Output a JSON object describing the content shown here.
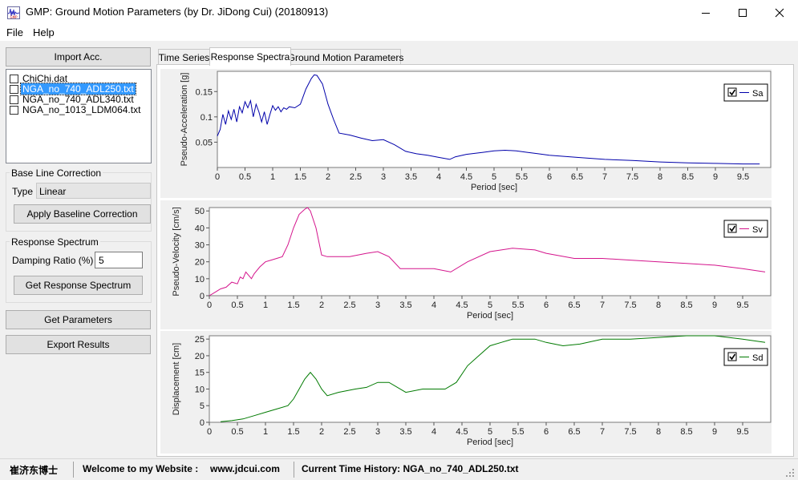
{
  "window": {
    "title": "GMP: Ground Motion Parameters (by Dr. JiDong Cui) (20180913)"
  },
  "menu": [
    "File",
    "Help"
  ],
  "left_panel": {
    "import_button": "Import Acc.",
    "files": [
      {
        "name": "ChiChi.dat",
        "checked": false,
        "selected": false
      },
      {
        "name": "NGA_no_740_ADL250.txt",
        "checked": false,
        "selected": true
      },
      {
        "name": "NGA_no_740_ADL340.txt",
        "checked": false,
        "selected": false
      },
      {
        "name": "NGA_no_1013_LDM064.txt",
        "checked": false,
        "selected": false
      }
    ],
    "baseline": {
      "title": "Base Line Correction",
      "type_label": "Type",
      "type_value": "Linear",
      "apply_button": "Apply Baseline Correction"
    },
    "response": {
      "title": "Response Spectrum",
      "damping_label": "Damping Ratio (%)",
      "damping_value": "5",
      "get_button": "Get Response Spectrum"
    },
    "get_parameters_button": "Get Parameters",
    "export_button": "Export Results"
  },
  "tabs": [
    {
      "label": "Time Series",
      "active": false
    },
    {
      "label": "Response Spectra",
      "active": true
    },
    {
      "label": "Ground Motion Parameters",
      "active": false
    }
  ],
  "status_bar": {
    "author": "崔济东博士",
    "welcome": "Welcome to my Website :",
    "website": "www.jdcui.com",
    "current": "Current Time History: NGA_no_740_ADL250.txt"
  },
  "colors": {
    "sa": "#0000aa",
    "sv": "#d4148c",
    "sd": "#007a00",
    "selected": "#3399ff"
  },
  "chart_data": [
    {
      "type": "line",
      "ylabel": "Pseudo-Acceleration [g]",
      "xlabel": "Period [sec]",
      "legend": "Sa",
      "legend_position": "top-right",
      "xlim": [
        0,
        10
      ],
      "ylim": [
        0,
        0.19
      ],
      "xticks": [
        "0",
        "0.5",
        "1",
        "1.5",
        "2",
        "2.5",
        "3",
        "3.5",
        "4",
        "4.5",
        "5",
        "5.5",
        "6",
        "6.5",
        "7",
        "7.5",
        "8",
        "8.5",
        "9",
        "9.5"
      ],
      "yticks": [
        "0.05",
        "0.1",
        "0.15"
      ],
      "series": [
        {
          "name": "Sa",
          "x": [
            0,
            0.05,
            0.1,
            0.15,
            0.2,
            0.25,
            0.3,
            0.35,
            0.4,
            0.45,
            0.5,
            0.55,
            0.6,
            0.65,
            0.7,
            0.75,
            0.8,
            0.85,
            0.9,
            0.95,
            1.0,
            1.05,
            1.1,
            1.15,
            1.2,
            1.25,
            1.3,
            1.4,
            1.5,
            1.6,
            1.7,
            1.75,
            1.8,
            1.9,
            2.0,
            2.1,
            2.2,
            2.4,
            2.6,
            2.8,
            3.0,
            3.2,
            3.4,
            3.6,
            3.8,
            4.0,
            4.2,
            4.3,
            4.5,
            4.8,
            5.0,
            5.2,
            5.4,
            5.6,
            5.8,
            6.0,
            6.5,
            7.0,
            7.5,
            8.0,
            8.5,
            9.0,
            9.5,
            9.8
          ],
          "values": [
            0.062,
            0.075,
            0.105,
            0.085,
            0.112,
            0.095,
            0.115,
            0.09,
            0.12,
            0.108,
            0.13,
            0.118,
            0.132,
            0.1,
            0.125,
            0.11,
            0.09,
            0.11,
            0.085,
            0.105,
            0.122,
            0.113,
            0.12,
            0.11,
            0.118,
            0.115,
            0.12,
            0.118,
            0.125,
            0.155,
            0.176,
            0.183,
            0.182,
            0.165,
            0.125,
            0.095,
            0.068,
            0.064,
            0.058,
            0.053,
            0.055,
            0.045,
            0.032,
            0.027,
            0.024,
            0.02,
            0.016,
            0.021,
            0.026,
            0.03,
            0.033,
            0.034,
            0.033,
            0.03,
            0.027,
            0.024,
            0.02,
            0.016,
            0.014,
            0.011,
            0.009,
            0.008,
            0.007,
            0.007
          ]
        }
      ]
    },
    {
      "type": "line",
      "ylabel": "Pseudo-Velocity [cm/s]",
      "xlabel": "Period [sec]",
      "legend": "Sv",
      "legend_position": "top-right",
      "xlim": [
        0,
        10
      ],
      "ylim": [
        0,
        52
      ],
      "xticks": [
        "0",
        "0.5",
        "1",
        "1.5",
        "2",
        "2.5",
        "3",
        "3.5",
        "4",
        "4.5",
        "5",
        "5.5",
        "6",
        "6.5",
        "7",
        "7.5",
        "8",
        "8.5",
        "9",
        "9.5"
      ],
      "yticks": [
        "0",
        "10",
        "20",
        "30",
        "40",
        "50"
      ],
      "series": [
        {
          "name": "Sv",
          "x": [
            0,
            0.1,
            0.2,
            0.3,
            0.4,
            0.5,
            0.55,
            0.6,
            0.65,
            0.7,
            0.75,
            0.8,
            0.9,
            1.0,
            1.1,
            1.2,
            1.3,
            1.4,
            1.5,
            1.6,
            1.7,
            1.75,
            1.8,
            1.9,
            2.0,
            2.1,
            2.2,
            2.5,
            2.8,
            3.0,
            3.2,
            3.4,
            3.6,
            4.0,
            4.3,
            4.6,
            5.0,
            5.4,
            5.8,
            6.0,
            6.5,
            7.0,
            7.5,
            8.0,
            8.5,
            9.0,
            9.5,
            9.9
          ],
          "values": [
            0,
            2,
            4,
            5,
            8,
            7,
            11,
            10,
            14,
            12,
            10,
            13,
            17,
            20,
            21,
            22,
            23,
            30,
            40,
            48,
            51,
            52,
            50,
            40,
            24,
            23,
            23,
            23,
            25,
            26,
            23,
            16,
            16,
            16,
            14,
            20,
            26,
            28,
            27,
            25,
            22,
            22,
            21,
            20,
            19,
            18,
            16,
            14
          ]
        }
      ]
    },
    {
      "type": "line",
      "ylabel": "Displacement [cm]",
      "xlabel": "Period [sec]",
      "legend": "Sd",
      "legend_position": "top-right",
      "xlim": [
        0,
        10
      ],
      "ylim": [
        0,
        26
      ],
      "xticks": [
        "0",
        "0.5",
        "1",
        "1.5",
        "2",
        "2.5",
        "3",
        "3.5",
        "4",
        "4.5",
        "5",
        "5.5",
        "6",
        "6.5",
        "7",
        "7.5",
        "8",
        "8.5",
        "9",
        "9.5"
      ],
      "yticks": [
        "0",
        "5",
        "10",
        "15",
        "20",
        "25"
      ],
      "series": [
        {
          "name": "Sd",
          "x": [
            0.2,
            0.4,
            0.6,
            0.8,
            1.0,
            1.2,
            1.4,
            1.5,
            1.6,
            1.7,
            1.8,
            1.9,
            2.0,
            2.1,
            2.3,
            2.6,
            2.8,
            3.0,
            3.2,
            3.5,
            3.8,
            4.0,
            4.2,
            4.4,
            4.6,
            4.8,
            5.0,
            5.2,
            5.4,
            5.6,
            5.8,
            6.0,
            6.3,
            6.6,
            7.0,
            7.5,
            8.0,
            8.5,
            9.0,
            9.5,
            9.9
          ],
          "values": [
            0.2,
            0.5,
            1,
            2,
            3,
            4,
            5,
            7,
            10,
            13,
            15,
            13,
            10,
            8,
            9,
            10,
            10.5,
            12,
            12,
            9,
            10,
            10,
            10,
            12,
            17,
            20,
            23,
            24,
            25,
            25,
            25,
            24,
            23,
            23.5,
            25,
            25,
            25.5,
            26,
            26,
            25,
            24
          ]
        }
      ]
    }
  ]
}
